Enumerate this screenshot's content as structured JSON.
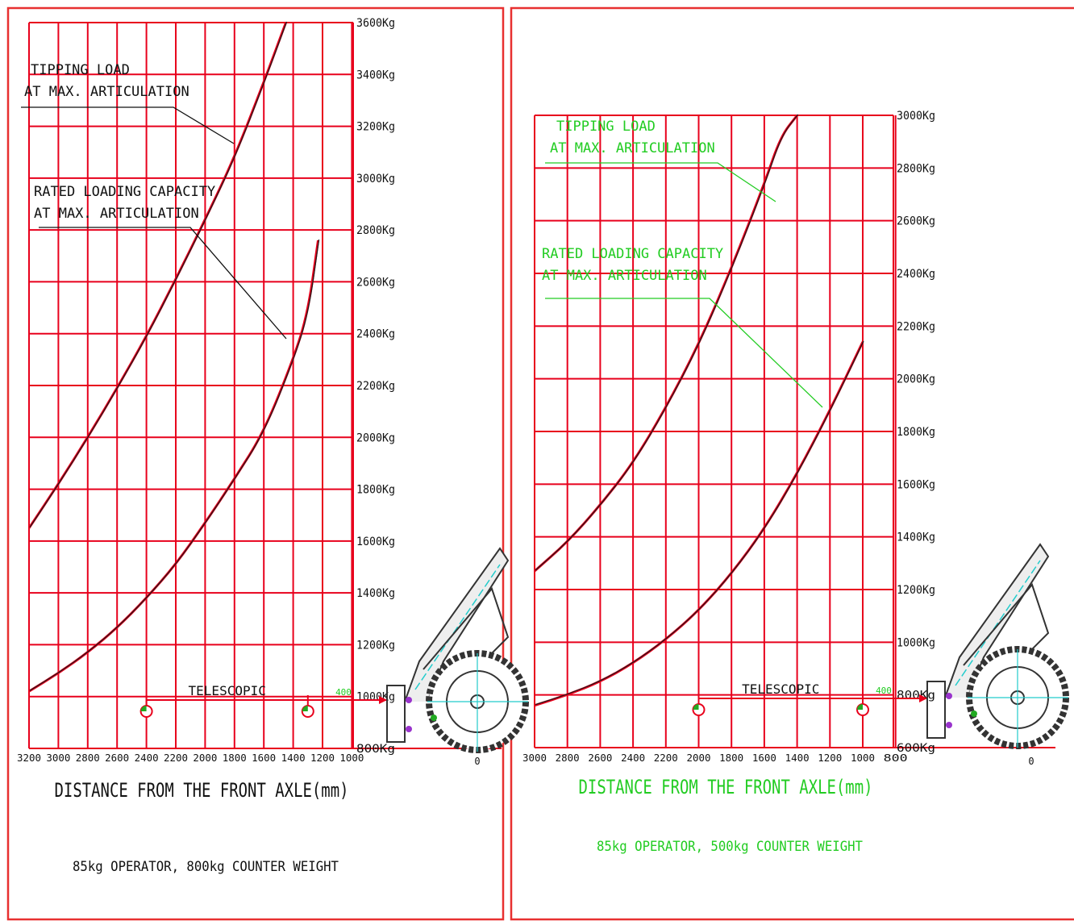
{
  "colors": {
    "grid": "#e8001c",
    "curve_red": "#e8001c",
    "curve_dark": "#1a1a1a",
    "panel_border": "#e83030",
    "label_black": "#111111",
    "label_green": "#22cc22",
    "telescopic_arrow": "#e8001c",
    "machine_line": "#333333",
    "machine_accent": "#22cccc"
  },
  "chart_data": [
    {
      "type": "line",
      "title": "",
      "xlabel": "DISTANCE FROM THE FRONT AXLE(mm)",
      "ylabel": "",
      "caption": "85kg OPERATOR, 800kg COUNTER WEIGHT",
      "label_color": "black",
      "x_reversed": true,
      "xlim": [
        3200,
        1000
      ],
      "ylim": [
        800,
        3600
      ],
      "y_tick_labels": [
        "3600Kg",
        "3400Kg",
        "3200Kg",
        "3000Kg",
        "2800Kg",
        "2600Kg",
        "2400Kg",
        "2200Kg",
        "2000Kg",
        "1800Kg",
        "1600Kg",
        "1400Kg",
        "1200Kg",
        "1000Kg",
        "800Kg"
      ],
      "x_tick_labels": [
        "3200",
        "3000",
        "2800",
        "2600",
        "2400",
        "2200",
        "2000",
        "1800",
        "1600",
        "1400",
        "1200",
        "1000"
      ],
      "zero_label": "0",
      "grid": true,
      "telescopic": {
        "label": "TELESCOPIC",
        "x_from": 2400,
        "x_to": 1300,
        "dimension": "400"
      },
      "series": [
        {
          "name": "TIPPING LOAD AT MAX. ARTICULATION",
          "label_lines": [
            "TIPPING LOAD",
            "AT MAX. ARTICULATION"
          ],
          "x": [
            3200,
            3000,
            2800,
            2600,
            2400,
            2200,
            2000,
            1800,
            1600,
            1450
          ],
          "y": [
            1650,
            1820,
            2000,
            2190,
            2390,
            2610,
            2840,
            3080,
            3370,
            3600
          ]
        },
        {
          "name": "RATED LOADING CAPACITY AT MAX. ARTICULATION",
          "label_lines": [
            "RATED LOADING CAPACITY",
            "AT MAX. ARTICULATION"
          ],
          "x": [
            3200,
            3000,
            2800,
            2600,
            2400,
            2200,
            2000,
            1800,
            1600,
            1400,
            1300,
            1230
          ],
          "y": [
            1020,
            1090,
            1170,
            1265,
            1380,
            1510,
            1670,
            1840,
            2020,
            2300,
            2480,
            2760
          ]
        }
      ]
    },
    {
      "type": "line",
      "title": "",
      "xlabel": "DISTANCE FROM THE FRONT AXLE(mm)",
      "ylabel": "",
      "caption": "85kg OPERATOR, 500kg COUNTER WEIGHT",
      "label_color": "green",
      "x_reversed": true,
      "xlim": [
        3000,
        800
      ],
      "ylim": [
        600,
        3000
      ],
      "y_tick_labels": [
        "3000Kg",
        "2800Kg",
        "2600Kg",
        "2400Kg",
        "2200Kg",
        "2000Kg",
        "1800Kg",
        "1600Kg",
        "1400Kg",
        "1200Kg",
        "1000Kg",
        "800Kg",
        "600Kg"
      ],
      "x_tick_labels": [
        "3000",
        "2800",
        "2600",
        "2400",
        "2200",
        "2000",
        "1800",
        "1600",
        "1400",
        "1200",
        "1000",
        "800"
      ],
      "zero_label": "0",
      "grid": true,
      "telescopic": {
        "label": "TELESCOPIC",
        "x_from": 2000,
        "x_to": 1000,
        "dimension": "400"
      },
      "series": [
        {
          "name": "TIPPING LOAD AT MAX. ARTICULATION",
          "label_lines": [
            "TIPPING LOAD",
            "AT MAX. ARTICULATION"
          ],
          "x": [
            3000,
            2800,
            2600,
            2400,
            2200,
            2000,
            1800,
            1600,
            1500,
            1400
          ],
          "y": [
            1270,
            1380,
            1520,
            1680,
            1890,
            2130,
            2420,
            2740,
            2920,
            3000
          ]
        },
        {
          "name": "RATED LOADING CAPACITY AT MAX. ARTICULATION",
          "label_lines": [
            "RATED LOADING CAPACITY",
            "AT MAX. ARTICULATION"
          ],
          "x": [
            3000,
            2800,
            2600,
            2400,
            2200,
            2000,
            1800,
            1600,
            1400,
            1200,
            1000
          ],
          "y": [
            760,
            800,
            850,
            920,
            1010,
            1120,
            1260,
            1430,
            1640,
            1880,
            2140
          ]
        }
      ]
    }
  ]
}
